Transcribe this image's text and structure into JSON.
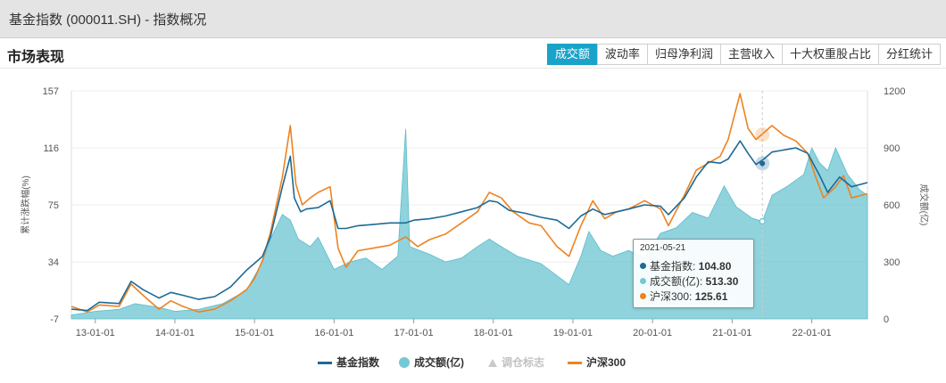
{
  "window": {
    "title": "基金指数 (000011.SH) - 指数概况"
  },
  "section": {
    "title": "市场表现"
  },
  "tabs": [
    {
      "label": "成交额",
      "active": true
    },
    {
      "label": "波动率",
      "active": false
    },
    {
      "label": "归母净利润",
      "active": false
    },
    {
      "label": "主营收入",
      "active": false
    },
    {
      "label": "十大权重股占比",
      "active": false
    },
    {
      "label": "分红统计",
      "active": false
    }
  ],
  "colors": {
    "index": "#1d6a96",
    "volume": "#74c8d4",
    "hs300": "#ee8320",
    "accent": "#1aa3c8"
  },
  "chart_data": {
    "type": "line",
    "xlabel": "",
    "ylabel_left": "累计涨跌幅(%)",
    "ylabel_right": "成交额(亿)",
    "y_left_ticks": [
      "157",
      "116",
      "75",
      "34",
      "-7"
    ],
    "y_left_range": [
      -7,
      157
    ],
    "y_right_ticks": [
      "1200",
      "900",
      "600",
      "300",
      "0"
    ],
    "y_right_range": [
      0,
      1200
    ],
    "x_tick_labels": [
      "13-01-01",
      "14-01-01",
      "15-01-01",
      "16-01-01",
      "17-01-01",
      "18-01-01",
      "19-01-01",
      "20-01-01",
      "21-01-01",
      "22-01-01"
    ],
    "x_range": [
      2012.7,
      2022.7
    ],
    "grid": true,
    "legend_position": "bottom",
    "series": [
      {
        "name": "基金指数",
        "axis": "left",
        "points": [
          [
            2012.7,
            0
          ],
          [
            2012.9,
            -1
          ],
          [
            2013.05,
            5
          ],
          [
            2013.3,
            4
          ],
          [
            2013.45,
            20
          ],
          [
            2013.6,
            14
          ],
          [
            2013.8,
            8
          ],
          [
            2013.95,
            12
          ],
          [
            2014.1,
            10
          ],
          [
            2014.3,
            7
          ],
          [
            2014.5,
            9
          ],
          [
            2014.7,
            16
          ],
          [
            2014.9,
            28
          ],
          [
            2015.0,
            33
          ],
          [
            2015.1,
            38
          ],
          [
            2015.2,
            52
          ],
          [
            2015.35,
            88
          ],
          [
            2015.45,
            110
          ],
          [
            2015.5,
            80
          ],
          [
            2015.58,
            70
          ],
          [
            2015.65,
            72
          ],
          [
            2015.8,
            73
          ],
          [
            2015.95,
            78
          ],
          [
            2016.05,
            58
          ],
          [
            2016.15,
            58
          ],
          [
            2016.3,
            60
          ],
          [
            2016.5,
            61
          ],
          [
            2016.7,
            62
          ],
          [
            2016.9,
            62
          ],
          [
            2017.0,
            64
          ],
          [
            2017.2,
            65
          ],
          [
            2017.4,
            67
          ],
          [
            2017.6,
            70
          ],
          [
            2017.8,
            73
          ],
          [
            2017.95,
            78
          ],
          [
            2018.05,
            77
          ],
          [
            2018.2,
            71
          ],
          [
            2018.4,
            69
          ],
          [
            2018.6,
            66
          ],
          [
            2018.8,
            64
          ],
          [
            2018.95,
            58
          ],
          [
            2019.1,
            67
          ],
          [
            2019.25,
            72
          ],
          [
            2019.4,
            68
          ],
          [
            2019.55,
            70
          ],
          [
            2019.7,
            72
          ],
          [
            2019.9,
            75
          ],
          [
            2020.1,
            74
          ],
          [
            2020.2,
            68
          ],
          [
            2020.4,
            80
          ],
          [
            2020.55,
            95
          ],
          [
            2020.7,
            106
          ],
          [
            2020.85,
            105
          ],
          [
            2020.95,
            108
          ],
          [
            2021.1,
            121
          ],
          [
            2021.2,
            112
          ],
          [
            2021.3,
            104
          ],
          [
            2021.4,
            108
          ],
          [
            2021.5,
            113
          ],
          [
            2021.6,
            114
          ],
          [
            2021.7,
            115
          ],
          [
            2021.8,
            116
          ],
          [
            2021.95,
            112
          ],
          [
            2022.1,
            96
          ],
          [
            2022.2,
            84
          ],
          [
            2022.35,
            95
          ],
          [
            2022.5,
            88
          ],
          [
            2022.7,
            91
          ]
        ]
      },
      {
        "name": "成交额(亿)",
        "axis": "right",
        "points": [
          [
            2012.7,
            20
          ],
          [
            2013.0,
            40
          ],
          [
            2013.3,
            50
          ],
          [
            2013.5,
            80
          ],
          [
            2013.8,
            60
          ],
          [
            2014.0,
            40
          ],
          [
            2014.3,
            50
          ],
          [
            2014.6,
            80
          ],
          [
            2014.9,
            150
          ],
          [
            2015.1,
            300
          ],
          [
            2015.2,
            420
          ],
          [
            2015.35,
            550
          ],
          [
            2015.45,
            520
          ],
          [
            2015.55,
            420
          ],
          [
            2015.7,
            380
          ],
          [
            2015.8,
            430
          ],
          [
            2016.0,
            260
          ],
          [
            2016.2,
            300
          ],
          [
            2016.4,
            320
          ],
          [
            2016.6,
            260
          ],
          [
            2016.8,
            330
          ],
          [
            2016.9,
            1000
          ],
          [
            2016.95,
            380
          ],
          [
            2017.2,
            340
          ],
          [
            2017.4,
            300
          ],
          [
            2017.6,
            320
          ],
          [
            2017.8,
            380
          ],
          [
            2017.95,
            420
          ],
          [
            2018.1,
            380
          ],
          [
            2018.3,
            330
          ],
          [
            2018.6,
            290
          ],
          [
            2018.95,
            180
          ],
          [
            2019.1,
            330
          ],
          [
            2019.2,
            460
          ],
          [
            2019.35,
            360
          ],
          [
            2019.5,
            330
          ],
          [
            2019.7,
            360
          ],
          [
            2019.9,
            320
          ],
          [
            2020.1,
            450
          ],
          [
            2020.3,
            480
          ],
          [
            2020.5,
            560
          ],
          [
            2020.7,
            530
          ],
          [
            2020.9,
            700
          ],
          [
            2021.05,
            590
          ],
          [
            2021.25,
            530
          ],
          [
            2021.38,
            513
          ],
          [
            2021.5,
            650
          ],
          [
            2021.7,
            700
          ],
          [
            2021.9,
            760
          ],
          [
            2022.0,
            900
          ],
          [
            2022.1,
            820
          ],
          [
            2022.2,
            780
          ],
          [
            2022.3,
            900
          ],
          [
            2022.45,
            760
          ],
          [
            2022.6,
            680
          ],
          [
            2022.7,
            650
          ]
        ]
      },
      {
        "name": "沪深300",
        "axis": "left",
        "points": [
          [
            2012.7,
            2
          ],
          [
            2012.9,
            -2
          ],
          [
            2013.05,
            3
          ],
          [
            2013.3,
            2
          ],
          [
            2013.45,
            18
          ],
          [
            2013.6,
            10
          ],
          [
            2013.8,
            0
          ],
          [
            2013.95,
            6
          ],
          [
            2014.1,
            2
          ],
          [
            2014.3,
            -2
          ],
          [
            2014.5,
            0
          ],
          [
            2014.7,
            6
          ],
          [
            2014.9,
            14
          ],
          [
            2015.0,
            22
          ],
          [
            2015.1,
            35
          ],
          [
            2015.2,
            55
          ],
          [
            2015.35,
            95
          ],
          [
            2015.45,
            132
          ],
          [
            2015.52,
            90
          ],
          [
            2015.6,
            75
          ],
          [
            2015.7,
            80
          ],
          [
            2015.8,
            84
          ],
          [
            2015.95,
            88
          ],
          [
            2016.05,
            44
          ],
          [
            2016.15,
            30
          ],
          [
            2016.3,
            42
          ],
          [
            2016.5,
            44
          ],
          [
            2016.7,
            46
          ],
          [
            2016.9,
            52
          ],
          [
            2017.05,
            45
          ],
          [
            2017.2,
            50
          ],
          [
            2017.4,
            54
          ],
          [
            2017.6,
            62
          ],
          [
            2017.8,
            70
          ],
          [
            2017.95,
            84
          ],
          [
            2018.1,
            80
          ],
          [
            2018.25,
            70
          ],
          [
            2018.45,
            62
          ],
          [
            2018.6,
            60
          ],
          [
            2018.8,
            45
          ],
          [
            2018.95,
            38
          ],
          [
            2019.1,
            60
          ],
          [
            2019.25,
            78
          ],
          [
            2019.4,
            65
          ],
          [
            2019.55,
            70
          ],
          [
            2019.7,
            72
          ],
          [
            2019.9,
            78
          ],
          [
            2020.1,
            72
          ],
          [
            2020.2,
            60
          ],
          [
            2020.4,
            82
          ],
          [
            2020.55,
            100
          ],
          [
            2020.7,
            105
          ],
          [
            2020.85,
            110
          ],
          [
            2020.95,
            122
          ],
          [
            2021.1,
            155
          ],
          [
            2021.2,
            130
          ],
          [
            2021.3,
            122
          ],
          [
            2021.38,
            126
          ],
          [
            2021.5,
            132
          ],
          [
            2021.65,
            125
          ],
          [
            2021.8,
            121
          ],
          [
            2021.95,
            112
          ],
          [
            2022.05,
            95
          ],
          [
            2022.15,
            80
          ],
          [
            2022.3,
            88
          ],
          [
            2022.4,
            96
          ],
          [
            2022.5,
            80
          ],
          [
            2022.7,
            83
          ]
        ]
      }
    ],
    "legend": [
      {
        "name": "基金指数",
        "marker": "line",
        "enabled": true
      },
      {
        "name": "成交额(亿)",
        "marker": "circle",
        "enabled": true
      },
      {
        "name": "调仓标志",
        "marker": "triangle",
        "enabled": false
      },
      {
        "name": "沪深300",
        "marker": "line",
        "enabled": true
      }
    ],
    "tooltip": {
      "date": "2021-05-21",
      "x": 2021.38,
      "rows": [
        {
          "label": "基金指数: ",
          "value": "104.80"
        },
        {
          "label": "成交额(亿): ",
          "value": "513.30"
        },
        {
          "label": "沪深300: ",
          "value": "125.61"
        }
      ]
    }
  }
}
